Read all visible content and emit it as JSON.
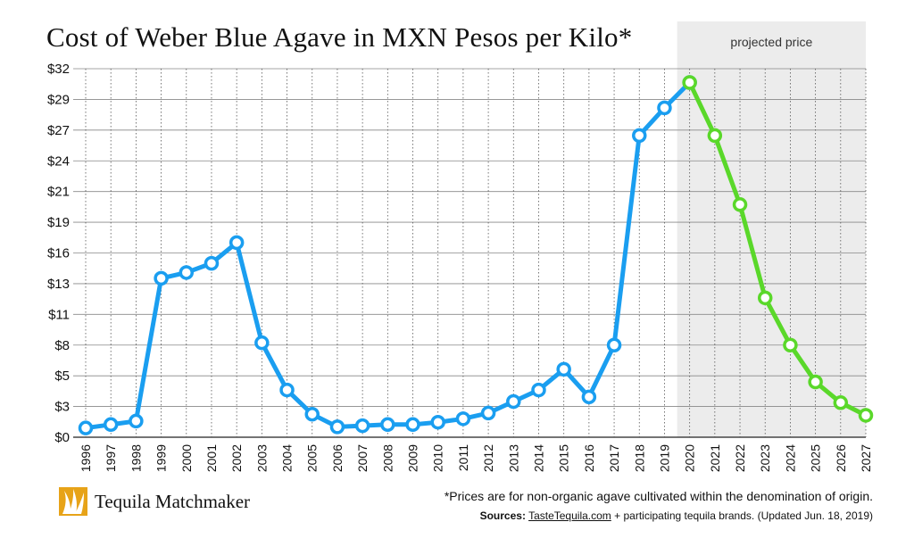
{
  "title": "Cost of Weber Blue Agave in MXN Pesos per Kilo*",
  "chart_data": {
    "type": "line",
    "title": "Cost of Weber Blue Agave in MXN Pesos per Kilo*",
    "xlabel": "",
    "ylabel": "",
    "x": [
      1996,
      1997,
      1998,
      1999,
      2000,
      2001,
      2002,
      2003,
      2004,
      2005,
      2006,
      2007,
      2008,
      2009,
      2010,
      2011,
      2012,
      2013,
      2014,
      2015,
      2016,
      2017,
      2018,
      2019,
      2020,
      2021,
      2022,
      2023,
      2024,
      2025,
      2026,
      2027
    ],
    "y_tick_labels": [
      "$0",
      "$3",
      "$5",
      "$8",
      "$11",
      "$13",
      "$16",
      "$19",
      "$21",
      "$24",
      "$27",
      "$29",
      "$32"
    ],
    "ylim": [
      0,
      32
    ],
    "grid": true,
    "projected_region": {
      "label": "projected price",
      "from": 2020,
      "to": 2027
    },
    "series": [
      {
        "name": "",
        "color": "#1a9ef0",
        "x": [
          1996,
          1997,
          1998,
          1999,
          2000,
          2001,
          2002,
          2003,
          2004,
          2005,
          2006,
          2007,
          2008,
          2009,
          2010,
          2011,
          2012,
          2013,
          2014,
          2015,
          2016,
          2017,
          2018,
          2019,
          2020
        ],
        "values": [
          0.8,
          1.1,
          1.4,
          13.8,
          14.3,
          15.1,
          16.9,
          8.2,
          4.1,
          2.0,
          0.9,
          1.0,
          1.1,
          1.1,
          1.3,
          1.6,
          2.1,
          3.1,
          4.1,
          5.9,
          3.5,
          8.0,
          26.2,
          28.6,
          30.8
        ]
      },
      {
        "name": "",
        "color": "#5ad82a",
        "x": [
          2020,
          2021,
          2022,
          2023,
          2024,
          2025,
          2026,
          2027
        ],
        "values": [
          30.8,
          26.2,
          20.2,
          12.1,
          8.0,
          4.8,
          3.0,
          1.9
        ]
      }
    ]
  },
  "brand": {
    "name": "Tequila Matchmaker",
    "logo_icon": "agave-logo-icon"
  },
  "footnote": "*Prices are for non-organic agave cultivated within the denomination of origin.",
  "sources": {
    "label": "Sources:",
    "link": "TasteTequila.com",
    "rest": " + participating tequila brands. (Updated Jun. 18, 2019)"
  }
}
